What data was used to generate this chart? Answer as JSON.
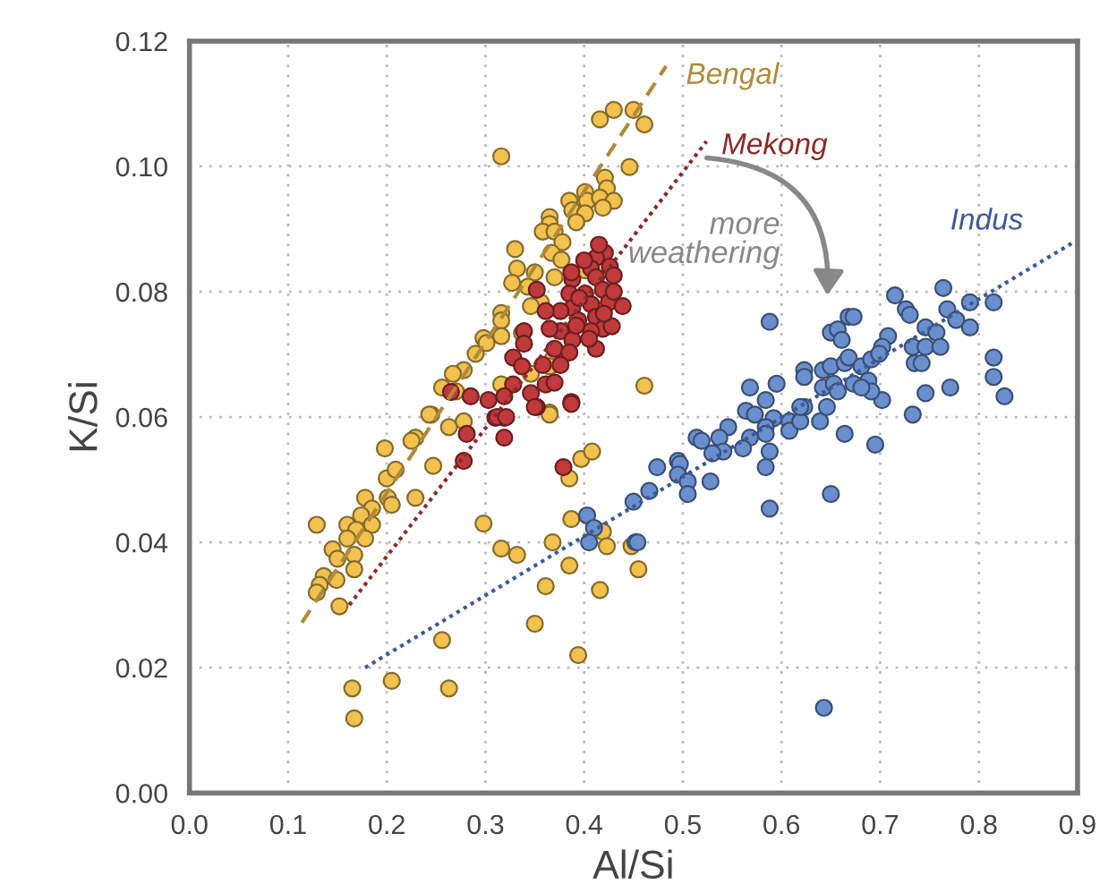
{
  "chart_data": {
    "type": "scatter",
    "xlabel": "Al/Si",
    "ylabel": "K/Si",
    "xlim": [
      0,
      0.9
    ],
    "ylim": [
      0,
      0.12
    ],
    "xticks": [
      {
        "value": 0,
        "label": "0.0"
      },
      {
        "value": 0.1,
        "label": "0.1"
      },
      {
        "value": 0.2,
        "label": "0.2"
      },
      {
        "value": 0.3,
        "label": "0.3"
      },
      {
        "value": 0.4,
        "label": "0.4"
      },
      {
        "value": 0.5,
        "label": "0.5"
      },
      {
        "value": 0.6,
        "label": "0.6"
      },
      {
        "value": 0.7,
        "label": "0.7"
      },
      {
        "value": 0.8,
        "label": "0.8"
      },
      {
        "value": 0.9,
        "label": "0.9"
      }
    ],
    "yticks": [
      {
        "value": 0,
        "label": "0.00"
      },
      {
        "value": 0.02,
        "label": "0.02"
      },
      {
        "value": 0.04,
        "label": "0.04"
      },
      {
        "value": 0.06,
        "label": "0.06"
      },
      {
        "value": 0.08,
        "label": "0.08"
      },
      {
        "value": 0.1,
        "label": "0.10"
      },
      {
        "value": 0.12,
        "label": "0.12"
      }
    ],
    "grid": true,
    "legend": false,
    "marker": "circle",
    "annotations": [
      "more weathering"
    ],
    "series": [
      {
        "color": "#f2c14e",
        "x": [
          0.316,
          0.416,
          0.43,
          0.45,
          0.461,
          0.446,
          0.421,
          0.423,
          0.401,
          0.385,
          0.403,
          0.416,
          0.43,
          0.419,
          0.388,
          0.401,
          0.392,
          0.365,
          0.365,
          0.358,
          0.37,
          0.378,
          0.33,
          0.367,
          0.377,
          0.332,
          0.35,
          0.37,
          0.327,
          0.343,
          0.356,
          0.346,
          0.316,
          0.316,
          0.337,
          0.316,
          0.298,
          0.301,
          0.29,
          0.368,
          0.365,
          0.346,
          0.316,
          0.278,
          0.267,
          0.256,
          0.27,
          0.245,
          0.365,
          0.401,
          0.461,
          0.243,
          0.263,
          0.278,
          0.229,
          0.225,
          0.198,
          0.2,
          0.209,
          0.247,
          0.201,
          0.205,
          0.229,
          0.178,
          0.185,
          0.174,
          0.16,
          0.185,
          0.169,
          0.16,
          0.178,
          0.145,
          0.15,
          0.167,
          0.167,
          0.136,
          0.132,
          0.129,
          0.149,
          0.129,
          0.152,
          0.298,
          0.316,
          0.332,
          0.368,
          0.385,
          0.361,
          0.35,
          0.394,
          0.256,
          0.263,
          0.205,
          0.165,
          0.167,
          0.387,
          0.419,
          0.423,
          0.416,
          0.448,
          0.455,
          0.397,
          0.408,
          0.385,
          0.365
        ],
        "values": [
          0.1016,
          0.1075,
          0.109,
          0.109,
          0.1067,
          0.0999,
          0.0982,
          0.0965,
          0.0959,
          0.0945,
          0.0945,
          0.095,
          0.0945,
          0.0934,
          0.093,
          0.0925,
          0.0911,
          0.0919,
          0.0908,
          0.0896,
          0.0896,
          0.0879,
          0.0868,
          0.0862,
          0.0851,
          0.0837,
          0.0831,
          0.0823,
          0.0814,
          0.0808,
          0.0783,
          0.0777,
          0.0766,
          0.0754,
          0.0734,
          0.0729,
          0.0726,
          0.0718,
          0.0701,
          0.0692,
          0.0681,
          0.0669,
          0.0652,
          0.0675,
          0.0669,
          0.0647,
          0.0641,
          0.0604,
          0.0607,
          0.0834,
          0.065,
          0.0604,
          0.0584,
          0.0593,
          0.0567,
          0.0562,
          0.055,
          0.0502,
          0.0516,
          0.0522,
          0.0471,
          0.046,
          0.0471,
          0.0471,
          0.0454,
          0.0443,
          0.0428,
          0.0428,
          0.042,
          0.0406,
          0.0406,
          0.0389,
          0.0374,
          0.038,
          0.0357,
          0.0346,
          0.0332,
          0.032,
          0.034,
          0.0428,
          0.0298,
          0.043,
          0.039,
          0.038,
          0.04,
          0.0363,
          0.033,
          0.027,
          0.022,
          0.0244,
          0.0167,
          0.0179,
          0.0167,
          0.0119,
          0.0437,
          0.0417,
          0.0394,
          0.0324,
          0.0394,
          0.0357,
          0.0533,
          0.0545,
          0.0502,
          0.0604
        ]
      },
      {
        "color": "#c0393b",
        "x": [
          0.421,
          0.412,
          0.426,
          0.407,
          0.43,
          0.412,
          0.388,
          0.419,
          0.401,
          0.385,
          0.425,
          0.407,
          0.439,
          0.388,
          0.376,
          0.412,
          0.394,
          0.419,
          0.376,
          0.407,
          0.365,
          0.412,
          0.388,
          0.37,
          0.385,
          0.352,
          0.361,
          0.339,
          0.339,
          0.328,
          0.337,
          0.358,
          0.376,
          0.361,
          0.37,
          0.346,
          0.352,
          0.328,
          0.319,
          0.303,
          0.285,
          0.31,
          0.319,
          0.387,
          0.387,
          0.392,
          0.4,
          0.415,
          0.43,
          0.428,
          0.278,
          0.281,
          0.312,
          0.321,
          0.319,
          0.35,
          0.387,
          0.379,
          0.265,
          0.395,
          0.405,
          0.42
        ],
        "values": [
          0.0862,
          0.0854,
          0.084,
          0.0837,
          0.0826,
          0.0823,
          0.082,
          0.0803,
          0.0797,
          0.0797,
          0.0783,
          0.078,
          0.0777,
          0.0774,
          0.0769,
          0.076,
          0.0754,
          0.0741,
          0.0737,
          0.0737,
          0.0741,
          0.0709,
          0.0723,
          0.0709,
          0.0703,
          0.0803,
          0.0769,
          0.0737,
          0.0717,
          0.0695,
          0.0681,
          0.0683,
          0.0683,
          0.0652,
          0.0655,
          0.0638,
          0.0616,
          0.0652,
          0.0633,
          0.0627,
          0.0633,
          0.0599,
          0.0599,
          0.0624,
          0.0831,
          0.0746,
          0.085,
          0.0875,
          0.08,
          0.0745,
          0.053,
          0.0573,
          0.06,
          0.06,
          0.0567,
          0.0616,
          0.0621,
          0.052,
          0.064,
          0.079,
          0.0725,
          0.0765
        ]
      },
      {
        "color": "#6a8fcf",
        "x": [
          0.588,
          0.715,
          0.764,
          0.791,
          0.815,
          0.768,
          0.726,
          0.73,
          0.668,
          0.673,
          0.65,
          0.657,
          0.661,
          0.708,
          0.702,
          0.746,
          0.757,
          0.777,
          0.791,
          0.733,
          0.746,
          0.761,
          0.735,
          0.742,
          0.815,
          0.815,
          0.826,
          0.771,
          0.746,
          0.733,
          0.702,
          0.695,
          0.664,
          0.65,
          0.643,
          0.588,
          0.584,
          0.588,
          0.595,
          0.568,
          0.584,
          0.564,
          0.573,
          0.592,
          0.584,
          0.584,
          0.568,
          0.561,
          0.546,
          0.537,
          0.541,
          0.53,
          0.514,
          0.519,
          0.495,
          0.497,
          0.474,
          0.495,
          0.505,
          0.505,
          0.528,
          0.466,
          0.45,
          0.452,
          0.608,
          0.608,
          0.619,
          0.623,
          0.619,
          0.639,
          0.646,
          0.623,
          0.623,
          0.642,
          0.642,
          0.653,
          0.657,
          0.65,
          0.664,
          0.668,
          0.673,
          0.681,
          0.688,
          0.691,
          0.691,
          0.699,
          0.681,
          0.403,
          0.41,
          0.405,
          0.454
        ],
        "values": [
          0.0752,
          0.0794,
          0.0806,
          0.0783,
          0.0783,
          0.0772,
          0.0772,
          0.0763,
          0.076,
          0.076,
          0.0735,
          0.074,
          0.0723,
          0.0729,
          0.0712,
          0.0743,
          0.0735,
          0.0755,
          0.0743,
          0.0712,
          0.0712,
          0.0712,
          0.0686,
          0.0686,
          0.0695,
          0.0664,
          0.0633,
          0.0647,
          0.0638,
          0.0604,
          0.0627,
          0.0556,
          0.0573,
          0.0477,
          0.0136,
          0.0454,
          0.052,
          0.0545,
          0.0653,
          0.0647,
          0.0627,
          0.061,
          0.0604,
          0.0598,
          0.0584,
          0.0573,
          0.0567,
          0.055,
          0.0584,
          0.0567,
          0.0545,
          0.0542,
          0.0567,
          0.0562,
          0.053,
          0.0525,
          0.052,
          0.0508,
          0.0497,
          0.0477,
          0.0497,
          0.0482,
          0.0465,
          0.04,
          0.0593,
          0.0578,
          0.0593,
          0.0616,
          0.0616,
          0.0593,
          0.0616,
          0.0675,
          0.0664,
          0.0675,
          0.0647,
          0.0653,
          0.0641,
          0.0681,
          0.0686,
          0.0695,
          0.0653,
          0.0681,
          0.0658,
          0.0641,
          0.0692,
          0.0701,
          0.0647,
          0.0443,
          0.0423,
          0.04,
          0.04
        ]
      },
      {
        "type": "line",
        "name": "Bengal",
        "color": "#b08a3a",
        "line_style": "dashed",
        "marker": "none",
        "x": [
          0.114,
          0.483
        ],
        "values": [
          0.0272,
          0.116
        ]
      },
      {
        "type": "line",
        "name": "Mekong",
        "color": "#8b2a2a",
        "line_style": "dotted",
        "marker": "none",
        "x": [
          0.162,
          0.524
        ],
        "values": [
          0.03,
          0.104
        ]
      },
      {
        "type": "line",
        "name": "Indus",
        "color": "#3b5a9b",
        "line_style": "dotted",
        "marker": "none",
        "x": [
          0.178,
          0.897
        ],
        "values": [
          0.02,
          0.088
        ]
      }
    ]
  }
}
